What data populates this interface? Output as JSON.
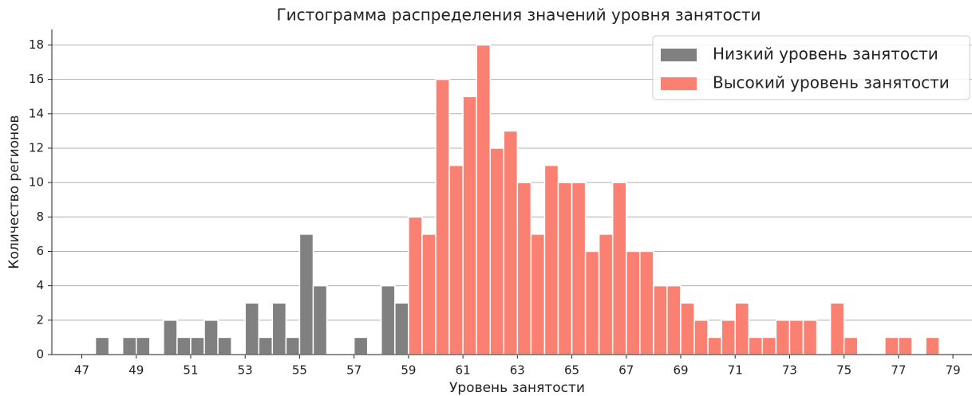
{
  "chart_data": {
    "type": "histogram",
    "title": "Гистограмма распределения значений уровня занятости",
    "xlabel": "Уровень занятости",
    "ylabel": "Количество регионов",
    "series": [
      {
        "name": "Низкий уровень занятости",
        "color": "#808080",
        "bins": [
          47.5,
          48,
          48.5,
          49,
          49.5,
          50,
          50.5,
          51,
          51.5,
          52,
          52.5,
          53,
          53.5,
          54,
          54.5,
          55,
          55.5,
          56,
          56.5,
          57,
          57.5,
          58,
          58.5,
          59
        ],
        "values": [
          1,
          0,
          1,
          1,
          0,
          2,
          1,
          1,
          2,
          1,
          0,
          3,
          1,
          3,
          1,
          7,
          4,
          0,
          0,
          1,
          0,
          4,
          3
        ]
      },
      {
        "name": "Высокий уровень занятости",
        "color": "#fa8072",
        "bins": [
          59,
          59.5,
          60,
          60.5,
          61,
          61.5,
          62,
          62.5,
          63,
          63.5,
          64,
          64.5,
          65,
          65.5,
          66,
          66.5,
          67,
          67.5,
          68,
          68.5,
          69,
          69.5,
          70,
          70.5,
          71,
          71.5,
          72,
          72.5,
          73,
          73.5,
          74,
          74.5,
          75,
          75.5,
          76,
          76.5,
          77,
          77.5,
          78,
          78.5
        ],
        "values": [
          8,
          7,
          16,
          11,
          15,
          18,
          12,
          13,
          10,
          7,
          11,
          10,
          10,
          6,
          7,
          10,
          6,
          6,
          4,
          4,
          3,
          2,
          1,
          2,
          3,
          1,
          1,
          2,
          2,
          2,
          0,
          3,
          1,
          0,
          0,
          1,
          1,
          0,
          1
        ]
      }
    ],
    "xlim": [
      45.9,
      79.7
    ],
    "ylim": [
      0,
      18.9
    ],
    "xticks": [
      47,
      49,
      51,
      53,
      55,
      57,
      59,
      61,
      63,
      65,
      67,
      69,
      71,
      73,
      75,
      77,
      79
    ],
    "yticks": [
      0,
      2,
      4,
      6,
      8,
      10,
      12,
      14,
      16,
      18
    ],
    "grid": true,
    "legend": "upper right"
  }
}
